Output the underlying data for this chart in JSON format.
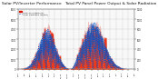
{
  "title": "Solar PV/Inverter Performance   Total PV Panel Power Output & Solar Radiation",
  "title_fontsize": 3.2,
  "bg_color": "#ffffff",
  "plot_bg_color": "#f8f8f8",
  "grid_color": "#aaaaaa",
  "red_color": "#dd1100",
  "red_fill_color": "#ee2200",
  "blue_color": "#0055cc",
  "ylim_left": [
    0,
    6000
  ],
  "ylim_right": [
    0,
    1200
  ],
  "num_points": 600,
  "yticks_left": [
    0,
    1000,
    2000,
    3000,
    4000,
    5000,
    6000
  ],
  "yticks_right": [
    0,
    200,
    400,
    600,
    800,
    1000,
    1200
  ],
  "legend_labels": [
    "Total PV Output (W)",
    "Solar Radiation (W/m2)"
  ],
  "legend_colors": [
    "#dd1100",
    "#0055cc"
  ]
}
